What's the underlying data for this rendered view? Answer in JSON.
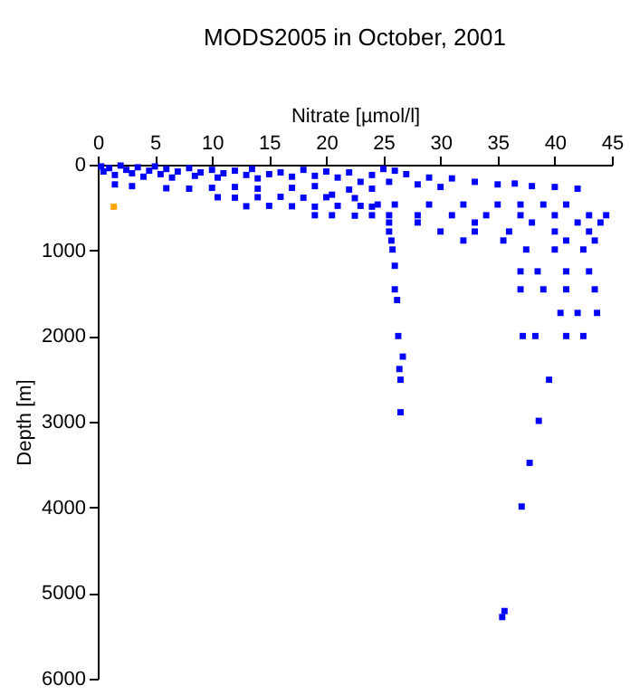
{
  "chart_data": {
    "type": "scatter",
    "title": "MODS2005 in October, 2001",
    "xlabel": "Nitrate [µmol/l]",
    "ylabel": "Depth [m]",
    "xlim": [
      0,
      45
    ],
    "xticks": [
      0,
      5,
      10,
      15,
      20,
      25,
      30,
      35,
      40,
      45
    ],
    "ylim": [
      6000,
      0
    ],
    "yticks": [
      0,
      1000,
      2000,
      3000,
      4000,
      5000,
      6000
    ],
    "grid": false,
    "marker": "square",
    "series": [
      {
        "color": "#0000ff",
        "x": [
          0.3,
          0.5,
          1,
          1.5,
          2,
          2.5,
          3,
          3.5,
          4,
          4.5,
          5,
          5.5,
          6,
          6.5,
          7,
          8,
          8.5,
          9,
          10,
          10.5,
          11,
          12,
          13,
          13.5,
          14,
          15,
          16,
          17,
          18,
          19,
          20,
          21,
          22,
          23,
          24,
          6,
          8,
          10,
          12,
          14,
          17,
          19,
          22,
          24,
          1.5,
          3,
          10.5,
          12,
          14,
          16,
          18,
          20,
          22.5,
          20.5,
          13,
          15,
          17,
          19,
          21,
          23,
          24,
          19,
          20.5,
          22.5,
          24,
          25,
          26,
          27,
          29,
          31,
          33,
          35,
          36.5,
          38,
          40,
          42,
          25.5,
          28,
          30,
          24.5,
          26,
          29,
          32,
          35,
          37,
          39,
          41,
          25.5,
          28,
          31,
          34,
          37,
          40,
          43,
          44.5,
          25.5,
          28,
          33,
          38,
          42,
          44,
          25.5,
          30,
          33,
          36,
          40,
          43,
          25.7,
          32,
          35.5,
          41,
          43.5,
          25.8,
          37.5,
          40,
          42.5,
          26,
          37,
          38.5,
          41,
          43,
          26,
          37,
          39,
          41,
          43.5,
          26.2,
          40.5,
          42,
          43.7,
          26.3,
          37.2,
          38.3,
          41,
          42.5,
          26.7,
          26.4,
          26.5,
          39.5,
          26.5,
          38.6,
          37.8,
          37.1,
          35.6,
          35.4
        ],
        "values": [
          20,
          80,
          40,
          120,
          10,
          60,
          100,
          30,
          140,
          70,
          20,
          110,
          50,
          150,
          80,
          40,
          130,
          90,
          60,
          150,
          100,
          70,
          120,
          50,
          160,
          110,
          90,
          140,
          60,
          130,
          80,
          150,
          90,
          200,
          120,
          275,
          280,
          270,
          260,
          280,
          270,
          250,
          290,
          280,
          230,
          250,
          380,
          385,
          380,
          375,
          385,
          380,
          390,
          350,
          485,
          480,
          485,
          490,
          480,
          480,
          490,
          590,
          590,
          595,
          590,
          50,
          70,
          110,
          150,
          160,
          200,
          230,
          220,
          250,
          260,
          280,
          200,
          230,
          260,
          465,
          465,
          465,
          465,
          465,
          465,
          465,
          465,
          590,
          590,
          590,
          590,
          590,
          590,
          590,
          590,
          675,
          675,
          675,
          675,
          675,
          675,
          780,
          780,
          780,
          780,
          780,
          780,
          885,
          885,
          885,
          885,
          885,
          990,
          990,
          990,
          990,
          1180,
          1245,
          1245,
          1245,
          1245,
          1455,
          1455,
          1455,
          1455,
          1455,
          1580,
          1730,
          1730,
          1730,
          2000,
          2000,
          2000,
          2000,
          2000,
          2240,
          2385,
          2510,
          2510,
          2890,
          2990,
          3480,
          3990,
          5210,
          5280
        ]
      },
      {
        "color": "#ffa500",
        "x": [
          1.4
        ],
        "values": [
          490
        ]
      }
    ]
  }
}
